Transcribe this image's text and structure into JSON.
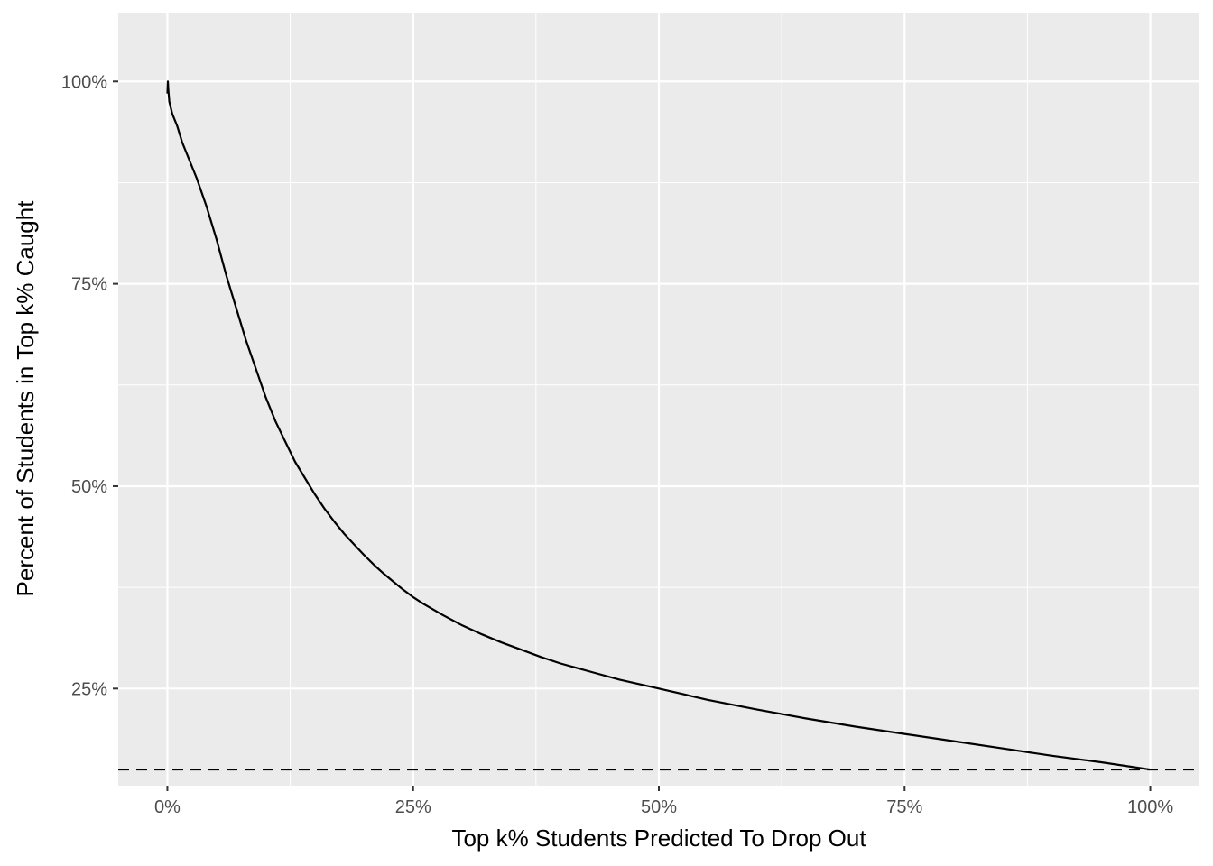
{
  "chart_data": {
    "type": "line",
    "title": "",
    "xlabel": "Top k% Students Predicted To Drop Out",
    "ylabel": "Percent of Students in Top k% Caught",
    "xlim": [
      -0.05,
      1.05
    ],
    "ylim": [
      0.13,
      1.085
    ],
    "grid": true,
    "legend": "none",
    "x_ticks": [
      {
        "value": 0,
        "label": "0%"
      },
      {
        "value": 0.25,
        "label": "25%"
      },
      {
        "value": 0.5,
        "label": "50%"
      },
      {
        "value": 0.75,
        "label": "75%"
      },
      {
        "value": 1,
        "label": "100%"
      }
    ],
    "y_ticks": [
      {
        "value": 0.25,
        "label": "25%"
      },
      {
        "value": 0.5,
        "label": "50%"
      },
      {
        "value": 0.75,
        "label": "75%"
      },
      {
        "value": 1,
        "label": "100%"
      }
    ],
    "x_minor": [
      0.125,
      0.375,
      0.625,
      0.875
    ],
    "y_minor": [
      0.125,
      0.375,
      0.625,
      0.875
    ],
    "series": [
      {
        "x": [
          0.0,
          0.0005,
          0.001,
          0.002,
          0.005,
          0.01,
          0.015,
          0.02,
          0.03,
          0.04,
          0.05,
          0.06,
          0.07,
          0.08,
          0.09,
          0.1,
          0.11,
          0.12,
          0.13,
          0.14,
          0.15,
          0.16,
          0.17,
          0.18,
          0.19,
          0.2,
          0.21,
          0.22,
          0.23,
          0.24,
          0.25,
          0.26,
          0.28,
          0.3,
          0.32,
          0.34,
          0.36,
          0.38,
          0.4,
          0.43,
          0.46,
          0.5,
          0.55,
          0.6,
          0.65,
          0.7,
          0.75,
          0.8,
          0.85,
          0.9,
          0.95,
          1.0
        ],
        "y": [
          0.985,
          1.0,
          0.99,
          0.975,
          0.96,
          0.945,
          0.925,
          0.91,
          0.88,
          0.845,
          0.805,
          0.76,
          0.72,
          0.68,
          0.645,
          0.61,
          0.58,
          0.555,
          0.53,
          0.51,
          0.49,
          0.472,
          0.456,
          0.441,
          0.428,
          0.415,
          0.403,
          0.392,
          0.382,
          0.372,
          0.363,
          0.355,
          0.341,
          0.328,
          0.317,
          0.307,
          0.298,
          0.289,
          0.281,
          0.271,
          0.261,
          0.25,
          0.236,
          0.224,
          0.213,
          0.203,
          0.194,
          0.185,
          0.176,
          0.167,
          0.159,
          0.15
        ]
      }
    ],
    "reference_line": {
      "y": 0.15,
      "style": "dashed"
    }
  }
}
